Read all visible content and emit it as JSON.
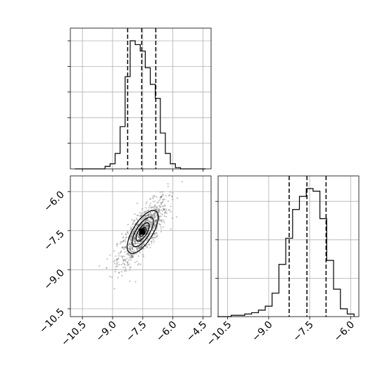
{
  "chart_data": [
    {
      "type": "histogram",
      "panel": "top-left",
      "x": [
        -10.75,
        -10.5,
        -10.25,
        -10.0,
        -9.75,
        -9.5,
        -9.25,
        -9.0,
        -8.75,
        -8.5,
        -8.25,
        -8.0,
        -7.75,
        -7.5,
        -7.25,
        -7.0,
        -6.75,
        -6.5,
        -6.25,
        -6.0,
        -5.75,
        -5.5,
        -5.25,
        -5.0,
        -4.75,
        -4.5
      ],
      "values": [
        0,
        0,
        0,
        0,
        0,
        0,
        2,
        4,
        12,
        33,
        72,
        100,
        97,
        92,
        79,
        66,
        55,
        28,
        12,
        4,
        1,
        0,
        0,
        0,
        0,
        0
      ],
      "quantiles": [
        -8.25,
        -7.55,
        -6.85
      ],
      "xlim": [
        -11.1,
        -4.1
      ],
      "xticks": [
        -10.5,
        -9.0,
        -7.5,
        -6.0,
        -4.5
      ],
      "grid": true
    },
    {
      "type": "scatter-contour",
      "panel": "bottom-left",
      "center": [
        -7.5,
        -7.55
      ],
      "xlim": [
        -11.1,
        -4.1
      ],
      "ylim": [
        -10.8,
        -5.4
      ],
      "xticks": [
        -10.5,
        -9.0,
        -7.5,
        -6.0,
        -4.5
      ],
      "yticks": [
        -6.0,
        -7.5,
        -9.0,
        -10.5
      ],
      "xtick_labels": [
        "−10.5",
        "−9.0",
        "−7.5",
        "−6.0",
        "−4.5"
      ],
      "ytick_labels": [
        "−6.0",
        "−7.5",
        "−9.0",
        "−10.5"
      ],
      "grid": true
    },
    {
      "type": "histogram",
      "panel": "bottom-right",
      "x": [
        -10.75,
        -10.5,
        -10.25,
        -10.0,
        -9.75,
        -9.5,
        -9.25,
        -9.0,
        -8.75,
        -8.5,
        -8.25,
        -8.0,
        -7.75,
        -7.5,
        -7.25,
        -7.0,
        -6.75,
        -6.5,
        -6.25,
        -6.0
      ],
      "values": [
        0,
        0,
        1,
        1,
        2,
        3,
        5,
        8,
        18,
        40,
        60,
        82,
        92,
        98,
        96,
        75,
        43,
        21,
        6,
        2
      ],
      "quantiles": [
        -8.25,
        -7.6,
        -6.9
      ],
      "xlim": [
        -10.85,
        -5.7
      ],
      "xticks": [
        -10.5,
        -9.0,
        -7.5,
        -6.0
      ],
      "xtick_labels": [
        "−10.5",
        "−9.0",
        "−7.5",
        "−6.0"
      ],
      "grid": true
    }
  ]
}
